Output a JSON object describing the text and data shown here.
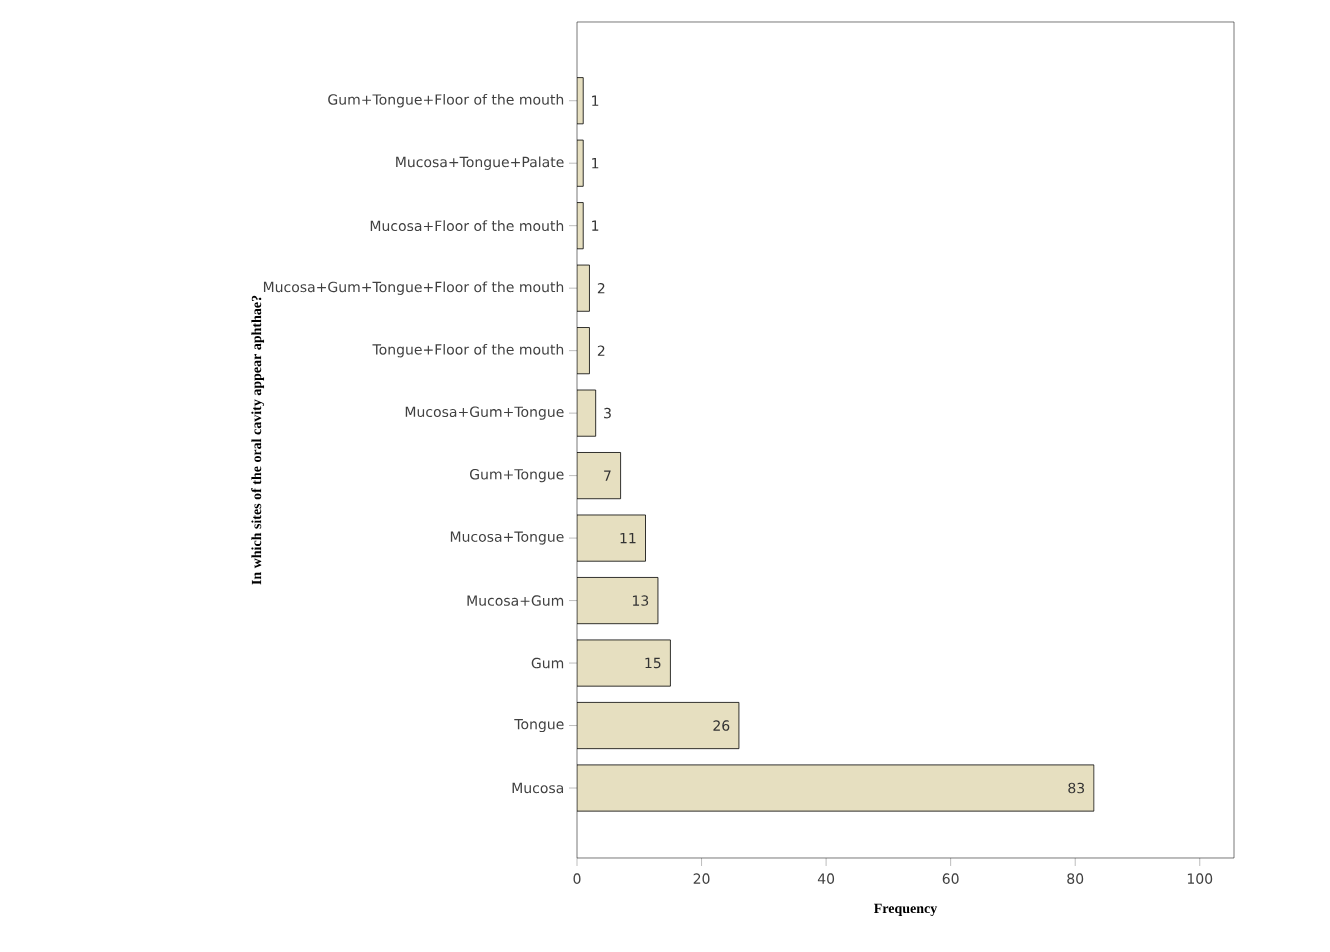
{
  "chart_data": {
    "type": "bar",
    "orientation": "horizontal",
    "xlabel": "Frequency",
    "ylabel": "In which sites of the oral cavity appear aphthae?",
    "categories": [
      "Gum+Tongue+Floor of the mouth",
      "Mucosa+Tongue+Palate",
      "Mucosa+Floor of the mouth",
      "Mucosa+Gum+Tongue+Floor of the mouth",
      "Tongue+Floor of the mouth",
      "Mucosa+Gum+Tongue",
      "Gum+Tongue",
      "Mucosa+Tongue",
      "Mucosa+Gum",
      "Gum",
      "Tongue",
      "Mucosa"
    ],
    "values": [
      1,
      1,
      1,
      2,
      2,
      3,
      7,
      11,
      13,
      15,
      26,
      83
    ],
    "value_labels": [
      "1",
      "1",
      "1",
      "2",
      "2",
      "3",
      "7",
      "11",
      "13",
      "15",
      "26",
      "83"
    ],
    "color": "#e6dfc0",
    "xlim": [
      0,
      105.5
    ],
    "xticks": [
      0,
      20,
      40,
      60,
      80,
      100
    ],
    "grid": false
  }
}
